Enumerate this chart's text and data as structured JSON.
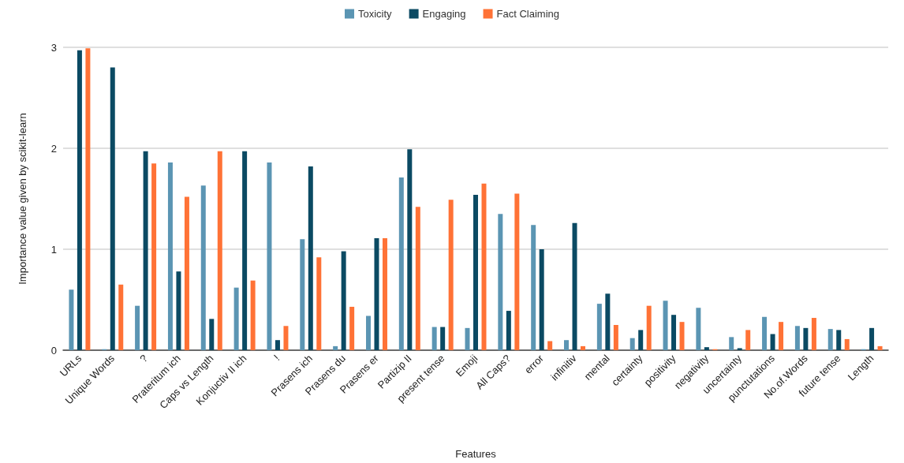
{
  "chart_data": {
    "type": "bar",
    "xlabel": "Features",
    "ylabel": "Importance value given by scikit-learn",
    "categories": [
      "URLs",
      "Unique Words",
      "?",
      "Prateritum ich",
      "Caps vs Length",
      "Konjuctiv II ich",
      "!",
      "Prasens ich",
      "Prasens du",
      "Prasens er",
      "Partizip II",
      "present tense",
      "Emoji",
      "All Caps?",
      "error",
      "infinitiv",
      "mental",
      "certainty",
      "positivity",
      "negativity",
      "uncertainty",
      "punctutations",
      "No.of.Words",
      "future tense",
      "Length"
    ],
    "series": [
      {
        "name": "Toxicity",
        "color": "#5b95b3",
        "values": [
          0.6,
          0.01,
          0.44,
          1.86,
          1.63,
          0.62,
          1.86,
          1.1,
          0.04,
          0.34,
          1.71,
          0.23,
          0.22,
          1.35,
          1.24,
          0.1,
          0.46,
          0.12,
          0.49,
          0.42,
          0.13,
          0.33,
          0.24,
          0.21,
          0.01
        ]
      },
      {
        "name": "Engaging",
        "color": "#0b4a63",
        "values": [
          2.97,
          2.8,
          1.97,
          0.78,
          0.31,
          1.97,
          0.1,
          1.82,
          0.98,
          1.11,
          1.99,
          0.23,
          1.54,
          0.39,
          1.0,
          1.26,
          0.56,
          0.2,
          0.35,
          0.03,
          0.02,
          0.16,
          0.22,
          0.2,
          0.22
        ]
      },
      {
        "name": "Fact Claiming",
        "color": "#ff7236",
        "values": [
          2.99,
          0.65,
          1.85,
          1.52,
          1.97,
          0.69,
          0.24,
          0.92,
          0.43,
          1.11,
          1.42,
          1.49,
          1.65,
          1.55,
          0.09,
          0.04,
          0.25,
          0.44,
          0.28,
          0.01,
          0.2,
          0.28,
          0.32,
          0.11,
          0.04
        ]
      }
    ],
    "ylim": [
      0,
      3
    ],
    "yticks": [
      0,
      1,
      2,
      3
    ],
    "grid": "y",
    "legend": "top"
  }
}
